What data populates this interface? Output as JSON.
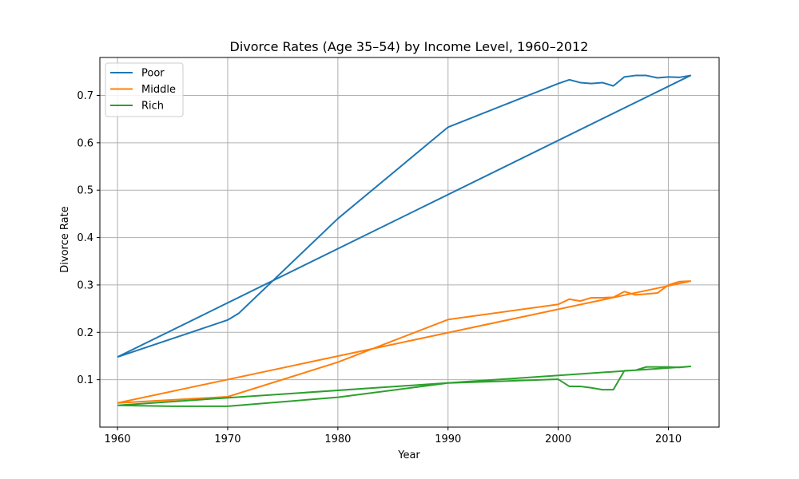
{
  "chart_data": {
    "type": "line",
    "title": "Divorce Rates (Age 35–54) by Income Level, 1960–2012",
    "xlabel": "Year",
    "ylabel": "Divorce Rate",
    "xlim": [
      1958.4,
      2014.6
    ],
    "ylim": [
      0.0,
      0.78
    ],
    "xticks": [
      1960,
      1970,
      1980,
      1990,
      2000,
      2010
    ],
    "yticks": [
      0.1,
      0.2,
      0.3,
      0.4,
      0.5,
      0.6,
      0.7
    ],
    "grid": true,
    "legend_position": "top-left",
    "series": [
      {
        "name": "Poor",
        "color": "#1f77b4",
        "points": [
          [
            1960,
            0.148
          ],
          [
            1970,
            0.226
          ],
          [
            1971,
            0.24
          ],
          [
            1980,
            0.44
          ],
          [
            1990,
            0.633
          ],
          [
            2000,
            0.725
          ],
          [
            2001,
            0.733
          ],
          [
            2002,
            0.727
          ],
          [
            2003,
            0.725
          ],
          [
            2004,
            0.727
          ],
          [
            2005,
            0.72
          ],
          [
            2006,
            0.739
          ],
          [
            2007,
            0.742
          ],
          [
            2008,
            0.742
          ],
          [
            2009,
            0.737
          ],
          [
            2010,
            0.739
          ],
          [
            2011,
            0.738
          ],
          [
            2012,
            0.742
          ],
          [
            1960,
            0.148
          ]
        ]
      },
      {
        "name": "Middle",
        "color": "#ff7f0e",
        "points": [
          [
            1960,
            0.051
          ],
          [
            1970,
            0.064
          ],
          [
            1980,
            0.137
          ],
          [
            1990,
            0.227
          ],
          [
            2000,
            0.259
          ],
          [
            2001,
            0.27
          ],
          [
            2002,
            0.266
          ],
          [
            2003,
            0.273
          ],
          [
            2004,
            0.273
          ],
          [
            2005,
            0.274
          ],
          [
            2006,
            0.286
          ],
          [
            2007,
            0.279
          ],
          [
            2008,
            0.281
          ],
          [
            2009,
            0.283
          ],
          [
            2010,
            0.3
          ],
          [
            2011,
            0.307
          ],
          [
            2012,
            0.308
          ],
          [
            1960,
            0.051
          ]
        ]
      },
      {
        "name": "Rich",
        "color": "#2ca02c",
        "points": [
          [
            1960,
            0.046
          ],
          [
            1965,
            0.044
          ],
          [
            1970,
            0.044
          ],
          [
            1980,
            0.063
          ],
          [
            1990,
            0.093
          ],
          [
            2000,
            0.101
          ],
          [
            2001,
            0.086
          ],
          [
            2002,
            0.086
          ],
          [
            2003,
            0.083
          ],
          [
            2004,
            0.079
          ],
          [
            2005,
            0.079
          ],
          [
            2006,
            0.119
          ],
          [
            2007,
            0.12
          ],
          [
            2008,
            0.127
          ],
          [
            2009,
            0.127
          ],
          [
            2010,
            0.127
          ],
          [
            2011,
            0.126
          ],
          [
            2012,
            0.128
          ],
          [
            1960,
            0.046
          ]
        ]
      }
    ]
  }
}
